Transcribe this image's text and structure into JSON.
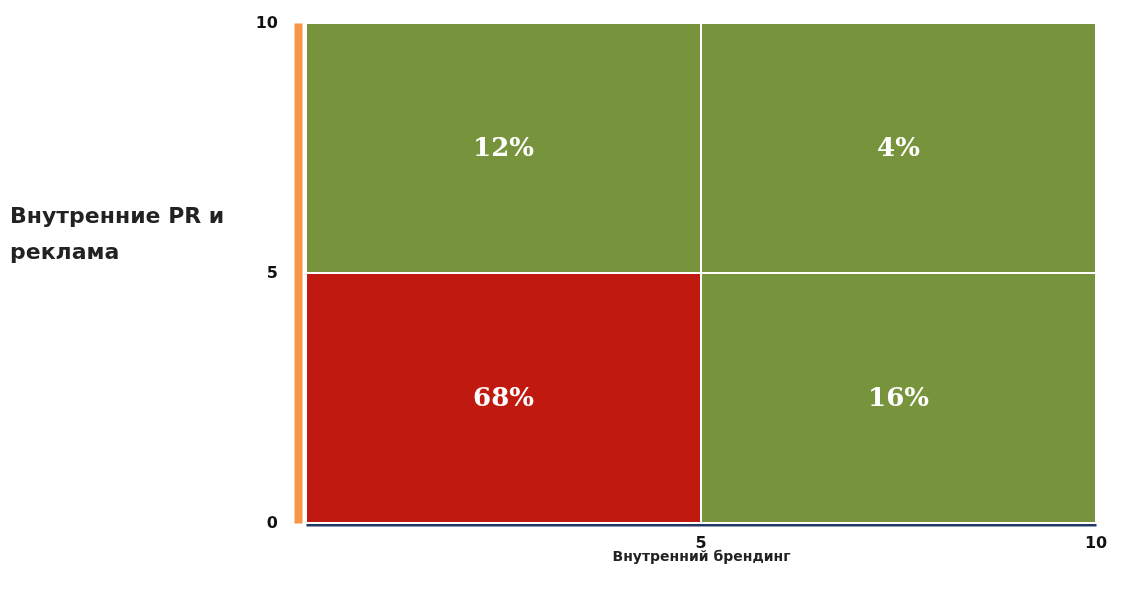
{
  "chart_data": {
    "type": "heatmap",
    "xlabel": "Внутренний брендинг",
    "ylabel": "Внутренние PR и реклама",
    "categories": [
      null,
      null
    ],
    "y_categories": [
      null,
      null
    ],
    "cells": [
      [
        12,
        4
      ],
      [
        68,
        16
      ]
    ],
    "cell_labels": [
      [
        "12%",
        "4%"
      ],
      [
        "68%",
        "16%"
      ]
    ],
    "colors": [
      "#77933c",
      "#77933c",
      "#c0190f",
      "#77933c"
    ],
    "annotations": [
      "10",
      "5",
      "0",
      "5",
      "10"
    ]
  }
}
